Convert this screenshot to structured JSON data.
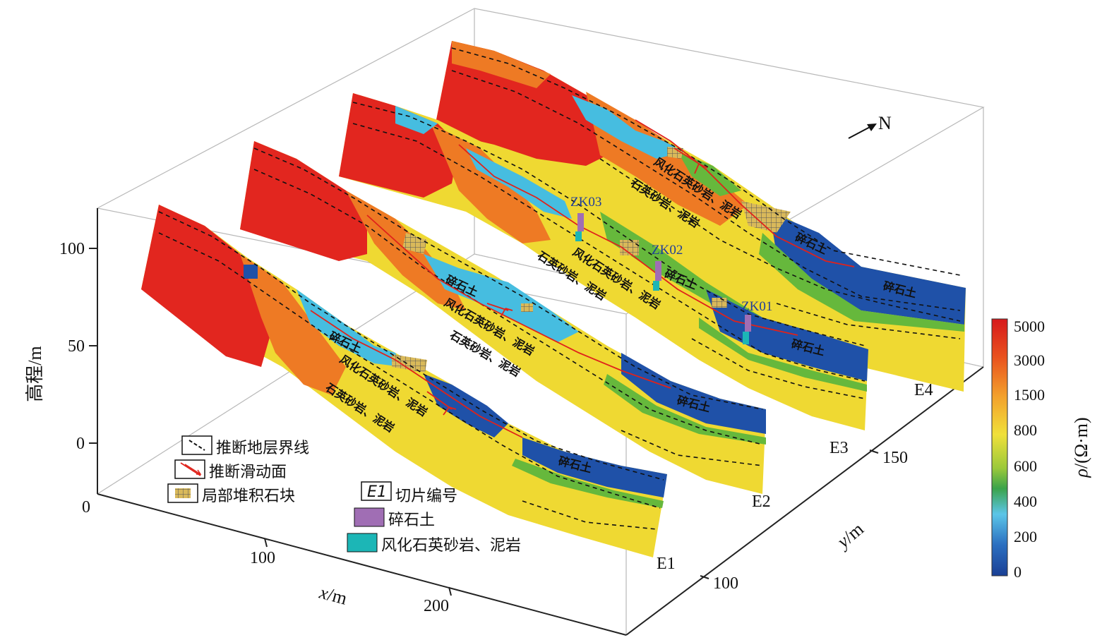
{
  "axes": {
    "z_label": "高程/m",
    "x_label_italic": "x",
    "x_label_unit": "/m",
    "y_label_italic": "y",
    "y_label_unit": "/m",
    "z_ticks": [
      "100",
      "50",
      "0",
      "0"
    ],
    "x_ticks": [
      "100",
      "200"
    ],
    "y_ticks": [
      "150",
      "100"
    ]
  },
  "north_label": "N",
  "slices": [
    {
      "id": "E1",
      "label": "E1"
    },
    {
      "id": "E2",
      "label": "E2"
    },
    {
      "id": "E3",
      "label": "E3"
    },
    {
      "id": "E4",
      "label": "E4"
    }
  ],
  "boreholes": [
    {
      "id": "ZK03",
      "label": "ZK03"
    },
    {
      "id": "ZK02",
      "label": "ZK02"
    },
    {
      "id": "ZK01",
      "label": "ZK01"
    }
  ],
  "layer_labels": {
    "rubble": "碎石土",
    "weathered": "风化石英砂岩、泥岩",
    "bedrock": "石英砂岩、泥岩"
  },
  "legend": {
    "stratum_boundary": "推断地层界线",
    "slip_surface": "推断滑动面",
    "boulders": "局部堆积石块",
    "slice_icon": "E1",
    "slice_id": "切片编号",
    "rubble": "碎石土",
    "weathered": "风化石英砂岩、泥岩"
  },
  "colorbar": {
    "title_italic": "ρ",
    "title_unit": "/(Ω·m)",
    "ticks": [
      "5000",
      "3000",
      "1500",
      "800",
      "600",
      "400",
      "200",
      "0"
    ]
  },
  "colors": {
    "red": "#e2261f",
    "orange": "#ee7a24",
    "yellow": "#efd932",
    "green": "#66b83c",
    "cyan": "#46bde0",
    "blue": "#1f51a8",
    "borehole_rubble": "#a06eb4",
    "borehole_weathered": "#1cb6b6",
    "slip_line": "#e0221b"
  }
}
